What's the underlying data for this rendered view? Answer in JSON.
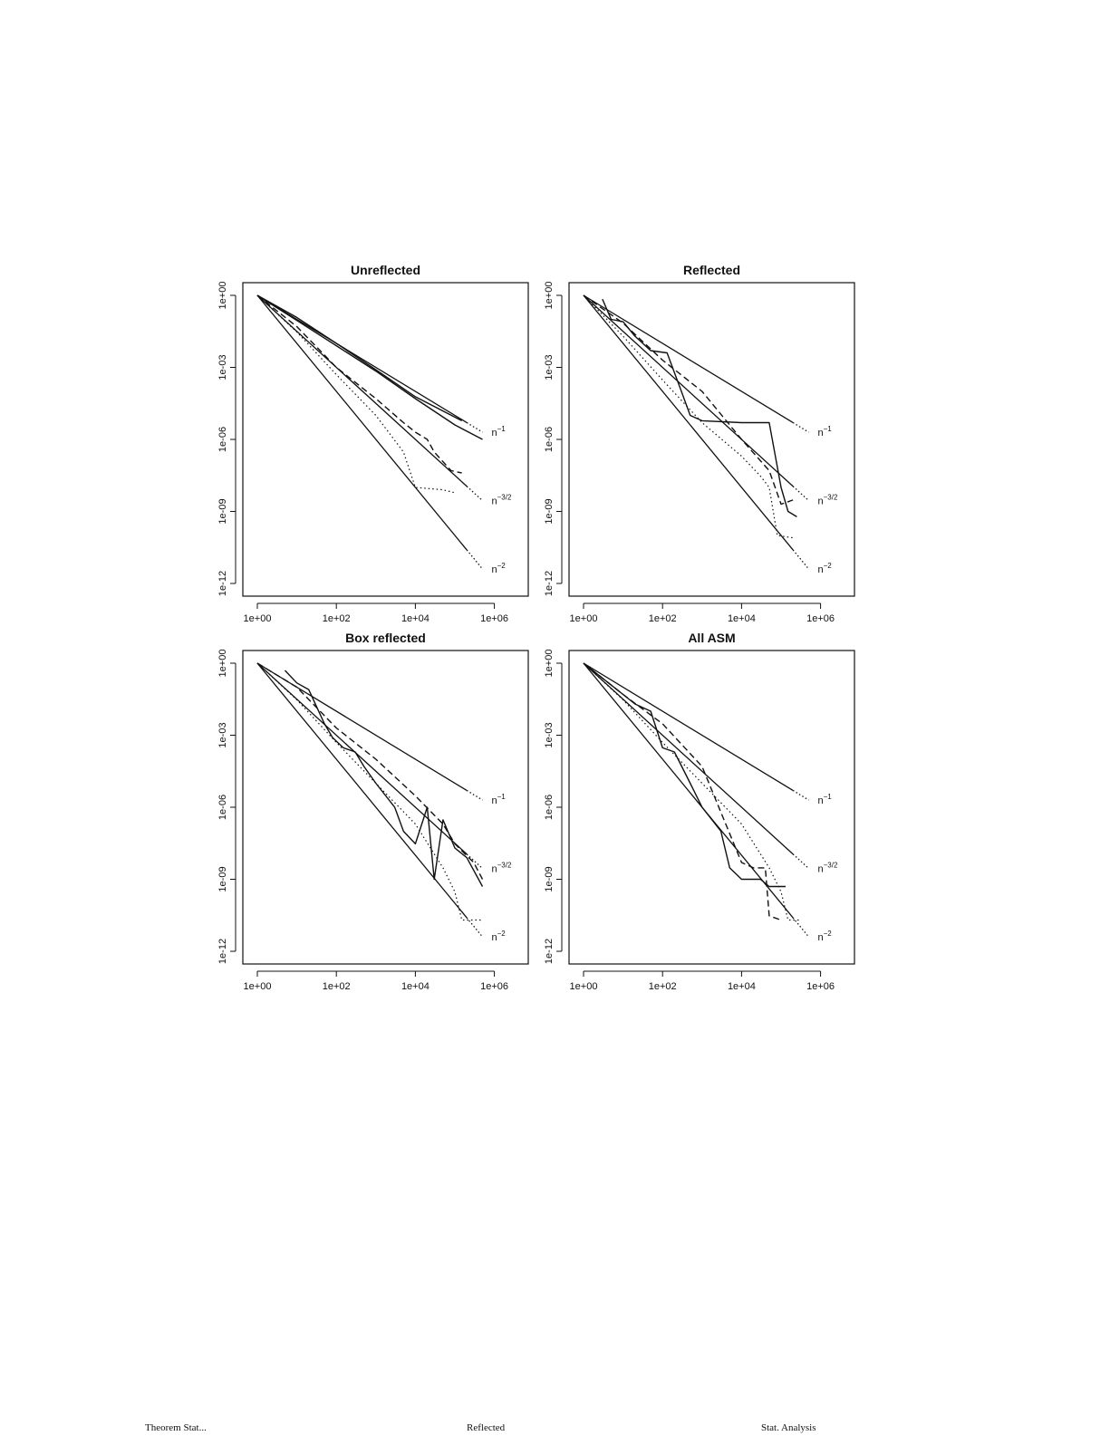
{
  "chart_data": [
    {
      "type": "line",
      "title": "Unreflected",
      "xscale": "log10",
      "yscale": "log10",
      "xlim": [
        1,
        1000000
      ],
      "ylim": [
        1e-12,
        1
      ],
      "x_ticks": [
        "1e+00",
        "1e+02",
        "1e+04",
        "1e+06"
      ],
      "y_ticks": [
        "1e+00",
        "1e-03",
        "1e-06",
        "1e-09",
        "1e-12"
      ],
      "reference_lines": [
        {
          "label": "n",
          "exp": "−1",
          "slope": -1
        },
        {
          "label": "n",
          "exp": "−3/2",
          "slope": -1.5
        },
        {
          "label": "n",
          "exp": "−2",
          "slope": -2
        }
      ],
      "series": [
        {
          "style": "solid",
          "x": [
            1,
            10,
            100,
            1000,
            10000,
            150000
          ],
          "y": [
            1,
            0.12,
            0.01,
            0.0008,
            6e-05,
            6e-06
          ]
        },
        {
          "style": "solid",
          "x": [
            1,
            10,
            100,
            1000,
            10000,
            100000,
            500000
          ],
          "y": [
            1,
            0.09,
            0.008,
            0.0007,
            5e-05,
            4e-06,
            1e-06
          ]
        },
        {
          "style": "dashed",
          "x": [
            1,
            10,
            100,
            1000,
            5000,
            10000,
            20000,
            30000,
            80000,
            150000
          ],
          "y": [
            1,
            0.05,
            0.001,
            5e-05,
            5e-06,
            2e-06,
            1e-06,
            3e-07,
            5e-08,
            4e-08
          ]
        },
        {
          "style": "dotted",
          "x": [
            1,
            10,
            100,
            1000,
            5000,
            10000,
            50000,
            100000
          ],
          "y": [
            1,
            0.03,
            0.0005,
            1e-05,
            3e-07,
            1e-08,
            8e-09,
            6e-09
          ]
        }
      ]
    },
    {
      "type": "line",
      "title": "Reflected",
      "xscale": "log10",
      "yscale": "log10",
      "xlim": [
        1,
        1000000
      ],
      "ylim": [
        1e-12,
        1
      ],
      "x_ticks": [
        "1e+00",
        "1e+02",
        "1e+04",
        "1e+06"
      ],
      "y_ticks": [
        "1e+00",
        "1e-03",
        "1e-06",
        "1e-09",
        "1e-12"
      ],
      "reference_lines": [
        {
          "label": "n",
          "exp": "−1",
          "slope": -1
        },
        {
          "label": "n",
          "exp": "−3/2",
          "slope": -1.5
        },
        {
          "label": "n",
          "exp": "−2",
          "slope": -2
        }
      ],
      "series": [
        {
          "style": "solid",
          "x": [
            3,
            5,
            10,
            20,
            50,
            130,
            300,
            500,
            1000,
            10000,
            50000,
            100000,
            150000,
            250000
          ],
          "y": [
            0.7,
            0.1,
            0.08,
            0.02,
            0.005,
            0.004,
            0.0001,
            1e-05,
            6e-06,
            5e-06,
            5e-06,
            1e-08,
            1e-09,
            6e-10
          ]
        },
        {
          "style": "dashed",
          "x": [
            1,
            10,
            100,
            1000,
            10000,
            50000,
            100000,
            200000
          ],
          "y": [
            1,
            0.07,
            0.002,
            0.0001,
            1e-06,
            5e-08,
            2e-09,
            3e-09
          ]
        },
        {
          "style": "dotted",
          "x": [
            1,
            10,
            100,
            1000,
            10000,
            30000,
            50000,
            80000,
            200000
          ],
          "y": [
            1,
            0.02,
            0.0003,
            5e-06,
            2e-07,
            3e-08,
            1e-08,
            1e-10,
            8e-11
          ]
        }
      ]
    },
    {
      "type": "line",
      "title": "Box reflected",
      "xscale": "log10",
      "yscale": "log10",
      "xlim": [
        1,
        1000000
      ],
      "ylim": [
        1e-12,
        1
      ],
      "x_ticks": [
        "1e+00",
        "1e+02",
        "1e+04",
        "1e+06"
      ],
      "y_ticks": [
        "1e+00",
        "1e-03",
        "1e-06",
        "1e-09",
        "1e-12"
      ],
      "reference_lines": [
        {
          "label": "n",
          "exp": "−1",
          "slope": -1
        },
        {
          "label": "n",
          "exp": "−3/2",
          "slope": -1.5
        },
        {
          "label": "n",
          "exp": "−2",
          "slope": -2
        }
      ],
      "series": [
        {
          "style": "solid",
          "x": [
            5,
            10,
            20,
            50,
            80,
            150,
            300,
            500,
            1000,
            3000,
            5000,
            10000,
            20000,
            30000,
            50000,
            100000,
            200000,
            500000
          ],
          "y": [
            0.5,
            0.15,
            0.08,
            0.003,
            0.0008,
            0.0003,
            0.0002,
            5e-05,
            1e-05,
            1e-06,
            1e-07,
            3e-08,
            1e-06,
            1e-09,
            3e-07,
            2e-08,
            8e-09,
            5e-10
          ]
        },
        {
          "style": "dashed",
          "x": [
            1,
            10,
            100,
            1000,
            10000,
            50000,
            100000,
            300000,
            500000
          ],
          "y": [
            1,
            0.1,
            0.002,
            0.0001,
            3e-06,
            2e-07,
            3e-08,
            5e-09,
            1e-09
          ]
        },
        {
          "style": "dotted",
          "x": [
            1,
            10,
            100,
            1000,
            10000,
            50000,
            100000,
            150000,
            500000
          ],
          "y": [
            1,
            0.03,
            0.0005,
            1e-05,
            2e-07,
            3e-09,
            3e-10,
            2e-11,
            2e-11
          ]
        }
      ]
    },
    {
      "type": "line",
      "title": "All ASM",
      "xscale": "log10",
      "yscale": "log10",
      "xlim": [
        1,
        1000000
      ],
      "ylim": [
        1e-12,
        1
      ],
      "x_ticks": [
        "1e+00",
        "1e+02",
        "1e+04",
        "1e+06"
      ],
      "y_ticks": [
        "1e+00",
        "1e-03",
        "1e-06",
        "1e-09",
        "1e-12"
      ],
      "reference_lines": [
        {
          "label": "n",
          "exp": "−1",
          "slope": -1
        },
        {
          "label": "n",
          "exp": "−3/2",
          "slope": -1.5
        },
        {
          "label": "n",
          "exp": "−2",
          "slope": -2
        }
      ],
      "series": [
        {
          "style": "solid",
          "x": [
            1,
            10,
            20,
            50,
            100,
            200,
            500,
            1000,
            3000,
            5000,
            10000,
            30000,
            50000,
            130000
          ],
          "y": [
            1,
            0.05,
            0.02,
            0.01,
            0.0003,
            0.0002,
            1e-05,
            1e-06,
            1e-07,
            3e-09,
            1e-09,
            1e-09,
            5e-10,
            5e-10
          ]
        },
        {
          "style": "dashed",
          "x": [
            1,
            10,
            100,
            1000,
            10000,
            20000,
            40000,
            50000,
            100000
          ],
          "y": [
            1,
            0.05,
            0.003,
            5e-05,
            5e-09,
            3e-09,
            3e-09,
            3e-11,
            2e-11
          ]
        },
        {
          "style": "dotted",
          "x": [
            1,
            10,
            100,
            1000,
            10000,
            50000,
            100000,
            150000,
            300000
          ],
          "y": [
            1,
            0.03,
            0.0005,
            1e-05,
            2e-07,
            3e-09,
            3e-10,
            2e-11,
            2e-11
          ]
        }
      ]
    }
  ],
  "footer": {
    "left": "Theorem Stat...",
    "center": "Reflected",
    "right": "Stat. Analysis"
  }
}
